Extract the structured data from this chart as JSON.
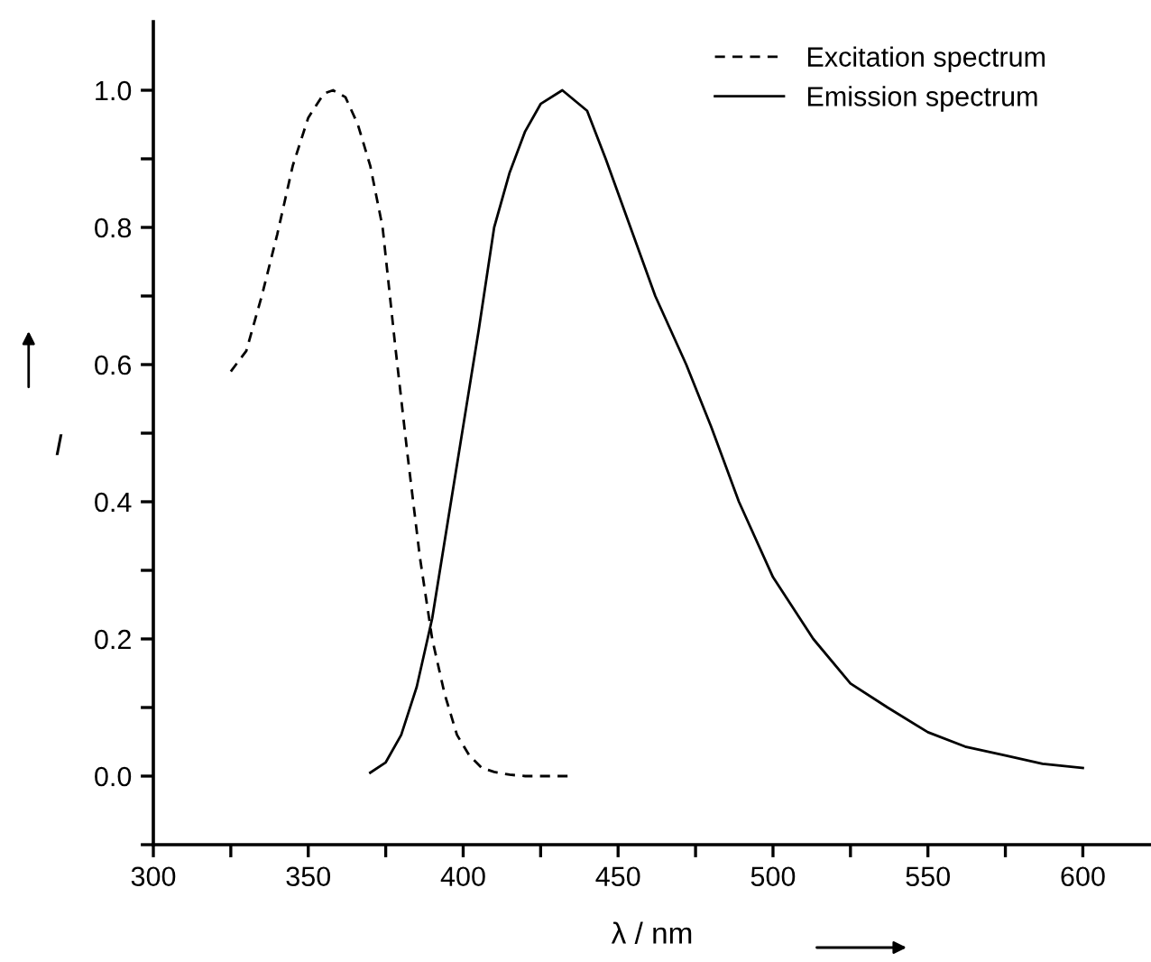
{
  "chart_data": {
    "type": "line",
    "xlabel": "λ / nm",
    "ylabel": "I",
    "xlim": [
      300,
      622
    ],
    "ylim": [
      -0.1,
      1.1
    ],
    "xticks": [
      300,
      {
        "value": 325,
        "label": null
      },
      350,
      {
        "value": 375,
        "label": null
      },
      400,
      {
        "value": 425,
        "label": null
      },
      450,
      {
        "value": 475,
        "label": null
      },
      500,
      {
        "value": 525,
        "label": null
      },
      550,
      {
        "value": 575,
        "label": null
      },
      600
    ],
    "yticks": [
      {
        "value": -0.1,
        "label": null
      },
      {
        "value": 0,
        "label": "0.0"
      },
      {
        "value": 0.1,
        "label": null
      },
      {
        "value": 0.2,
        "label": "0.2"
      },
      {
        "value": 0.3,
        "label": null
      },
      {
        "value": 0.4,
        "label": "0.4"
      },
      {
        "value": 0.5,
        "label": null
      },
      {
        "value": 0.6,
        "label": "0.6"
      },
      {
        "value": 0.7,
        "label": null
      },
      {
        "value": 0.8,
        "label": "0.8"
      },
      {
        "value": 0.9,
        "label": null
      },
      {
        "value": 1.0,
        "label": "1.0"
      }
    ],
    "legend": "top right",
    "grid": false,
    "marker": "none",
    "series": [
      {
        "name": "Excitation spectrum",
        "color": "#000000",
        "line_style": "dashed",
        "x": [
          325,
          330,
          335,
          340,
          345,
          350,
          355,
          358,
          362,
          366,
          370,
          374,
          378,
          382,
          386,
          390,
          394,
          398,
          402,
          406,
          410,
          415,
          420,
          435
        ],
        "values": [
          0.59,
          0.62,
          0.7,
          0.79,
          0.89,
          0.96,
          0.995,
          1.0,
          0.99,
          0.95,
          0.89,
          0.8,
          0.63,
          0.47,
          0.32,
          0.2,
          0.12,
          0.06,
          0.03,
          0.012,
          0.006,
          0.002,
          0.0,
          0.0
        ]
      },
      {
        "name": "Emission spectrum",
        "color": "#000000",
        "line_style": "solid",
        "x": [
          370,
          375,
          380,
          385,
          390,
          395,
          400,
          405,
          410,
          415,
          420,
          425,
          432,
          440,
          446,
          454,
          462,
          472,
          480,
          489,
          500,
          513,
          525,
          537,
          550,
          562,
          575,
          587,
          600
        ],
        "values": [
          0.005,
          0.02,
          0.06,
          0.13,
          0.23,
          0.37,
          0.51,
          0.65,
          0.8,
          0.88,
          0.94,
          0.98,
          1.0,
          0.97,
          0.9,
          0.8,
          0.7,
          0.6,
          0.51,
          0.4,
          0.29,
          0.2,
          0.135,
          0.1,
          0.064,
          0.043,
          0.03,
          0.018,
          0.012
        ]
      }
    ]
  }
}
